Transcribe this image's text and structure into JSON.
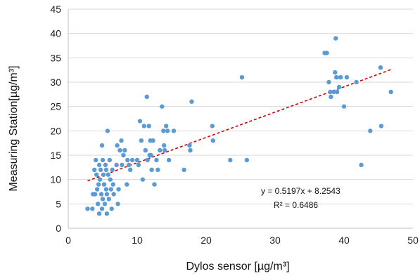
{
  "chart_data": {
    "type": "scatter",
    "xlabel": "Dylos sensor [µg/m³]",
    "ylabel": "Measuring Station[µg/m³]",
    "xlim": [
      0,
      50
    ],
    "ylim": [
      0,
      45
    ],
    "xticks": [
      0,
      10,
      20,
      30,
      40,
      50
    ],
    "yticks": [
      0,
      5,
      10,
      15,
      20,
      25,
      30,
      35,
      40,
      45
    ],
    "grid": "horizontal",
    "colors": {
      "points": "#5b9bd5",
      "trendline": "#cc0000"
    },
    "trendline": {
      "slope": 0.5197,
      "intercept": 8.2543,
      "x_range": [
        2.8,
        46.8
      ],
      "equation": "y = 0.5197x + 8.2543",
      "r_squared": "R² = 0.6486"
    },
    "points": [
      [
        2.8,
        4
      ],
      [
        3.5,
        4
      ],
      [
        3.6,
        7
      ],
      [
        3.8,
        12
      ],
      [
        3.9,
        7
      ],
      [
        4.0,
        14
      ],
      [
        4.1,
        11
      ],
      [
        4.2,
        8
      ],
      [
        4.3,
        5
      ],
      [
        4.4,
        9
      ],
      [
        4.5,
        13
      ],
      [
        4.5,
        3
      ],
      [
        4.6,
        10
      ],
      [
        4.7,
        12
      ],
      [
        4.8,
        7
      ],
      [
        4.9,
        4
      ],
      [
        4.9,
        17
      ],
      [
        5.0,
        14
      ],
      [
        5.0,
        6
      ],
      [
        5.1,
        11
      ],
      [
        5.2,
        9
      ],
      [
        5.3,
        5
      ],
      [
        5.4,
        13
      ],
      [
        5.5,
        8
      ],
      [
        5.5,
        12
      ],
      [
        5.6,
        7
      ],
      [
        5.6,
        3
      ],
      [
        5.7,
        20
      ],
      [
        5.8,
        11
      ],
      [
        5.9,
        6
      ],
      [
        6.0,
        14
      ],
      [
        6.1,
        10
      ],
      [
        6.2,
        8
      ],
      [
        6.3,
        4
      ],
      [
        6.4,
        12
      ],
      [
        6.5,
        9
      ],
      [
        6.6,
        7
      ],
      [
        7.0,
        13
      ],
      [
        7.1,
        17
      ],
      [
        7.2,
        5
      ],
      [
        7.3,
        8
      ],
      [
        7.5,
        16
      ],
      [
        7.7,
        18
      ],
      [
        7.8,
        13
      ],
      [
        8.0,
        15
      ],
      [
        8.2,
        16
      ],
      [
        8.5,
        9
      ],
      [
        8.6,
        14
      ],
      [
        8.8,
        13
      ],
      [
        9.0,
        12
      ],
      [
        9.3,
        14
      ],
      [
        10.0,
        14
      ],
      [
        10.2,
        13
      ],
      [
        10.4,
        22
      ],
      [
        10.6,
        18
      ],
      [
        10.8,
        10
      ],
      [
        11.0,
        21
      ],
      [
        11.2,
        16
      ],
      [
        11.4,
        27
      ],
      [
        11.5,
        14
      ],
      [
        11.7,
        21
      ],
      [
        11.8,
        15
      ],
      [
        11.9,
        18
      ],
      [
        12.0,
        15
      ],
      [
        12.1,
        12
      ],
      [
        12.3,
        18
      ],
      [
        12.5,
        9
      ],
      [
        12.8,
        14
      ],
      [
        13.0,
        12
      ],
      [
        13.3,
        16
      ],
      [
        13.6,
        25
      ],
      [
        13.8,
        20
      ],
      [
        13.9,
        17
      ],
      [
        14.0,
        16
      ],
      [
        14.2,
        21
      ],
      [
        14.4,
        20
      ],
      [
        14.6,
        14
      ],
      [
        15.3,
        20
      ],
      [
        16.8,
        12
      ],
      [
        17.6,
        17
      ],
      [
        17.7,
        16
      ],
      [
        17.9,
        26
      ],
      [
        20.9,
        21
      ],
      [
        21.0,
        18
      ],
      [
        23.5,
        14
      ],
      [
        25.2,
        31
      ],
      [
        25.9,
        14
      ],
      [
        37.2,
        36
      ],
      [
        37.5,
        36
      ],
      [
        37.8,
        30
      ],
      [
        38.0,
        28
      ],
      [
        38.1,
        27
      ],
      [
        38.5,
        28
      ],
      [
        38.7,
        32
      ],
      [
        38.8,
        39
      ],
      [
        38.9,
        31
      ],
      [
        39.0,
        28
      ],
      [
        39.3,
        29
      ],
      [
        39.5,
        31
      ],
      [
        40.0,
        25
      ],
      [
        40.4,
        31
      ],
      [
        41.8,
        30
      ],
      [
        42.5,
        13
      ],
      [
        43.8,
        20
      ],
      [
        45.3,
        33
      ],
      [
        45.4,
        21
      ],
      [
        46.8,
        28
      ]
    ]
  }
}
